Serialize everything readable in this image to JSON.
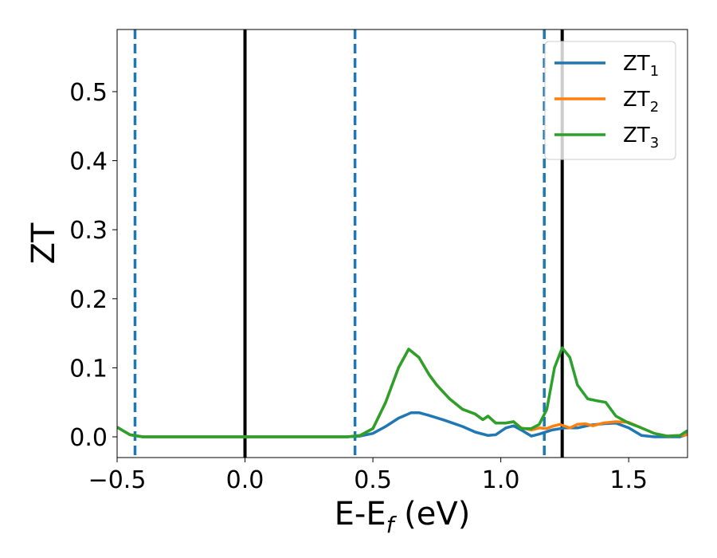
{
  "chart_data": {
    "type": "line",
    "title": "",
    "xlabel": {
      "base": "E-E",
      "sub": "f",
      "rest": " (eV)"
    },
    "ylabel": "ZT",
    "xlim": [
      -0.5,
      1.73
    ],
    "ylim": [
      -0.03,
      0.59
    ],
    "xticks": [
      -0.5,
      0.0,
      0.5,
      1.0,
      1.5
    ],
    "xtick_labels": [
      "−0.5",
      "0.0",
      "0.5",
      "1.0",
      "1.5"
    ],
    "yticks": [
      0.0,
      0.1,
      0.2,
      0.3,
      0.4,
      0.5
    ],
    "ytick_labels": [
      "0.0",
      "0.1",
      "0.2",
      "0.3",
      "0.4",
      "0.5"
    ],
    "grid": false,
    "legend": {
      "placement": "top-right"
    },
    "series": [
      {
        "name": "ZT",
        "sub": "1",
        "color": "#1f77b4",
        "points": [
          [
            -0.5,
            0.014
          ],
          [
            -0.45,
            0.003
          ],
          [
            -0.4,
            0.0
          ],
          [
            0.0,
            0.0
          ],
          [
            0.4,
            0.0
          ],
          [
            0.45,
            0.001
          ],
          [
            0.5,
            0.005
          ],
          [
            0.55,
            0.015
          ],
          [
            0.6,
            0.027
          ],
          [
            0.65,
            0.035
          ],
          [
            0.68,
            0.035
          ],
          [
            0.72,
            0.031
          ],
          [
            0.78,
            0.024
          ],
          [
            0.85,
            0.015
          ],
          [
            0.9,
            0.007
          ],
          [
            0.95,
            0.002
          ],
          [
            0.98,
            0.003
          ],
          [
            1.02,
            0.013
          ],
          [
            1.05,
            0.016
          ],
          [
            1.08,
            0.01
          ],
          [
            1.12,
            0.001
          ],
          [
            1.15,
            0.004
          ],
          [
            1.2,
            0.01
          ],
          [
            1.25,
            0.013
          ],
          [
            1.3,
            0.013
          ],
          [
            1.35,
            0.017
          ],
          [
            1.4,
            0.019
          ],
          [
            1.45,
            0.02
          ],
          [
            1.5,
            0.013
          ],
          [
            1.55,
            0.002
          ],
          [
            1.6,
            0.0
          ],
          [
            1.7,
            0.0
          ],
          [
            1.73,
            0.004
          ]
        ]
      },
      {
        "name": "ZT",
        "sub": "2",
        "color": "#ff7f0e",
        "points": [
          [
            -0.5,
            0.014
          ],
          [
            -0.45,
            0.003
          ],
          [
            -0.4,
            0.0
          ],
          [
            0.0,
            0.0
          ],
          [
            0.4,
            0.0
          ],
          [
            0.45,
            0.002
          ],
          [
            0.5,
            0.012
          ],
          [
            0.55,
            0.05
          ],
          [
            0.6,
            0.1
          ],
          [
            0.64,
            0.127
          ],
          [
            0.68,
            0.115
          ],
          [
            0.72,
            0.09
          ],
          [
            0.75,
            0.075
          ],
          [
            0.8,
            0.055
          ],
          [
            0.85,
            0.04
          ],
          [
            0.9,
            0.033
          ],
          [
            0.93,
            0.025
          ],
          [
            0.95,
            0.03
          ],
          [
            0.98,
            0.02
          ],
          [
            1.02,
            0.02
          ],
          [
            1.05,
            0.022
          ],
          [
            1.08,
            0.013
          ],
          [
            1.12,
            0.01
          ],
          [
            1.15,
            0.013
          ],
          [
            1.18,
            0.012
          ],
          [
            1.2,
            0.015
          ],
          [
            1.23,
            0.018
          ],
          [
            1.27,
            0.013
          ],
          [
            1.3,
            0.018
          ],
          [
            1.33,
            0.019
          ],
          [
            1.36,
            0.016
          ],
          [
            1.4,
            0.02
          ],
          [
            1.45,
            0.022
          ],
          [
            1.5,
            0.021
          ],
          [
            1.55,
            0.013
          ],
          [
            1.6,
            0.005
          ],
          [
            1.65,
            0.001
          ],
          [
            1.7,
            0.002
          ],
          [
            1.73,
            0.003
          ]
        ]
      },
      {
        "name": "ZT",
        "sub": "3",
        "color": "#2ca02c",
        "points": [
          [
            -0.5,
            0.014
          ],
          [
            -0.45,
            0.003
          ],
          [
            -0.4,
            0.0
          ],
          [
            0.0,
            0.0
          ],
          [
            0.4,
            0.0
          ],
          [
            0.45,
            0.002
          ],
          [
            0.5,
            0.012
          ],
          [
            0.55,
            0.05
          ],
          [
            0.6,
            0.1
          ],
          [
            0.64,
            0.127
          ],
          [
            0.68,
            0.115
          ],
          [
            0.72,
            0.09
          ],
          [
            0.75,
            0.075
          ],
          [
            0.8,
            0.055
          ],
          [
            0.85,
            0.04
          ],
          [
            0.9,
            0.033
          ],
          [
            0.93,
            0.025
          ],
          [
            0.95,
            0.03
          ],
          [
            0.98,
            0.02
          ],
          [
            1.02,
            0.02
          ],
          [
            1.05,
            0.022
          ],
          [
            1.08,
            0.012
          ],
          [
            1.12,
            0.012
          ],
          [
            1.15,
            0.018
          ],
          [
            1.18,
            0.04
          ],
          [
            1.21,
            0.1
          ],
          [
            1.24,
            0.129
          ],
          [
            1.27,
            0.115
          ],
          [
            1.3,
            0.075
          ],
          [
            1.34,
            0.055
          ],
          [
            1.38,
            0.052
          ],
          [
            1.41,
            0.05
          ],
          [
            1.45,
            0.03
          ],
          [
            1.5,
            0.02
          ],
          [
            1.55,
            0.013
          ],
          [
            1.6,
            0.005
          ],
          [
            1.65,
            0.001
          ],
          [
            1.7,
            0.002
          ],
          [
            1.73,
            0.009
          ]
        ]
      }
    ],
    "vlines": [
      {
        "x": -0.43,
        "style": "dashed",
        "color": "#1f77b4"
      },
      {
        "x": 0.0,
        "style": "solid",
        "color": "#000000"
      },
      {
        "x": 0.43,
        "style": "dashed",
        "color": "#1f77b4"
      },
      {
        "x": 1.17,
        "style": "dashed",
        "color": "#1f77b4"
      },
      {
        "x": 1.24,
        "style": "solid",
        "color": "#000000"
      }
    ]
  }
}
